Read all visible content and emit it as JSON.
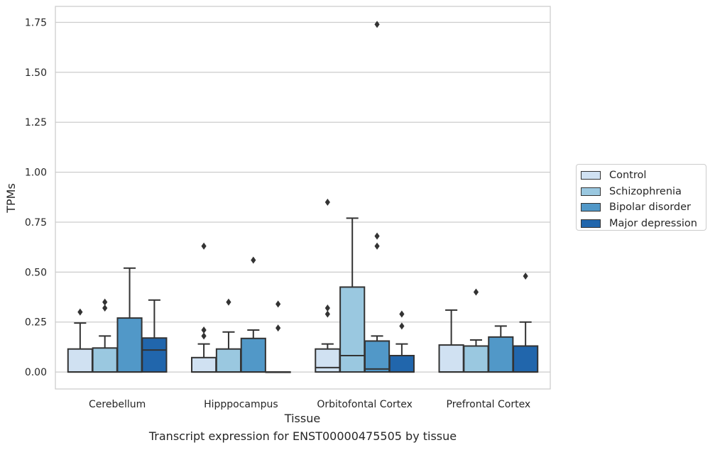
{
  "caption": "Transcript expression for ENST00000475505 by tissue",
  "chart_data": {
    "type": "box",
    "xlabel": "Tissue",
    "ylabel": "TPMs",
    "ylim": [
      -0.085,
      1.83
    ],
    "yticks": [
      0.0,
      0.25,
      0.5,
      0.75,
      1.0,
      1.25,
      1.5,
      1.75
    ],
    "ytick_labels": [
      "0.00",
      "0.25",
      "0.50",
      "0.75",
      "1.00",
      "1.25",
      "1.50",
      "1.75"
    ],
    "grid": true,
    "legend_position": "right",
    "categories": [
      "Cerebellum",
      "Hipppocampus",
      "Orbitofontal Cortex",
      "Prefrontal Cortex"
    ],
    "series": [
      {
        "name": "Control",
        "color": "#d0e1f2",
        "boxes": [
          {
            "whislo": 0.0,
            "q1": 0.0,
            "med": 0.0,
            "q3": 0.115,
            "whishi": 0.245,
            "fliers": [
              0.3
            ]
          },
          {
            "whislo": 0.0,
            "q1": 0.0,
            "med": 0.0,
            "q3": 0.072,
            "whishi": 0.14,
            "fliers": [
              0.18,
              0.21,
              0.63
            ]
          },
          {
            "whislo": 0.0,
            "q1": 0.0,
            "med": 0.022,
            "q3": 0.115,
            "whishi": 0.14,
            "fliers": [
              0.29,
              0.32,
              0.85
            ]
          },
          {
            "whislo": 0.0,
            "q1": 0.0,
            "med": 0.0,
            "q3": 0.135,
            "whishi": 0.31,
            "fliers": []
          }
        ]
      },
      {
        "name": "Schizophrenia",
        "color": "#9ac8e0",
        "boxes": [
          {
            "whislo": 0.0,
            "q1": 0.0,
            "med": 0.0,
            "q3": 0.12,
            "whishi": 0.18,
            "fliers": [
              0.32,
              0.35
            ]
          },
          {
            "whislo": 0.0,
            "q1": 0.0,
            "med": 0.0,
            "q3": 0.115,
            "whishi": 0.2,
            "fliers": [
              0.35
            ]
          },
          {
            "whislo": 0.0,
            "q1": 0.0,
            "med": 0.082,
            "q3": 0.425,
            "whishi": 0.77,
            "fliers": []
          },
          {
            "whislo": 0.0,
            "q1": 0.0,
            "med": 0.0,
            "q3": 0.13,
            "whishi": 0.16,
            "fliers": [
              0.4
            ]
          }
        ]
      },
      {
        "name": "Bipolar disorder",
        "color": "#5198c8",
        "boxes": [
          {
            "whislo": 0.0,
            "q1": 0.0,
            "med": 0.0,
            "q3": 0.27,
            "whishi": 0.52,
            "fliers": []
          },
          {
            "whislo": 0.0,
            "q1": 0.0,
            "med": 0.0,
            "q3": 0.168,
            "whishi": 0.21,
            "fliers": [
              0.56
            ]
          },
          {
            "whislo": 0.0,
            "q1": 0.0,
            "med": 0.015,
            "q3": 0.155,
            "whishi": 0.18,
            "fliers": [
              0.63,
              0.68,
              1.74
            ]
          },
          {
            "whislo": 0.0,
            "q1": 0.0,
            "med": 0.0,
            "q3": 0.175,
            "whishi": 0.23,
            "fliers": []
          }
        ]
      },
      {
        "name": "Major depression",
        "color": "#2166ac",
        "boxes": [
          {
            "whislo": 0.0,
            "q1": 0.0,
            "med": 0.11,
            "q3": 0.17,
            "whishi": 0.36,
            "fliers": []
          },
          {
            "whislo": 0.0,
            "q1": 0.0,
            "med": 0.0,
            "q3": 0.0,
            "whishi": 0.0,
            "fliers": [
              0.22,
              0.34
            ]
          },
          {
            "whislo": 0.0,
            "q1": 0.0,
            "med": 0.0,
            "q3": 0.082,
            "whishi": 0.14,
            "fliers": [
              0.23,
              0.29
            ]
          },
          {
            "whislo": 0.0,
            "q1": 0.0,
            "med": 0.0,
            "q3": 0.13,
            "whishi": 0.25,
            "fliers": [
              0.48
            ]
          }
        ]
      }
    ]
  }
}
